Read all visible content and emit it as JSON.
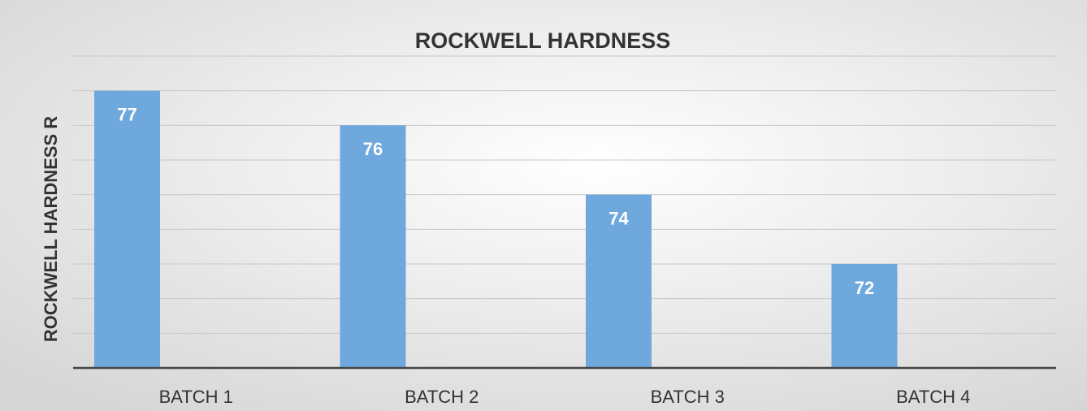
{
  "chart_data": {
    "type": "bar",
    "title": "ROCKWELL HARDNESS",
    "y_axis_label": "ROCKWELL HARDNESS  R",
    "categories": [
      "BATCH 1",
      "BATCH 2",
      "BATCH 3",
      "BATCH 4"
    ],
    "values": [
      77,
      76,
      74,
      72
    ],
    "color": "#6fa8dc",
    "ylim": [
      69,
      78
    ],
    "yticks": [
      69,
      70,
      71,
      72,
      73,
      74,
      75,
      76,
      77,
      78
    ],
    "grid": true
  }
}
